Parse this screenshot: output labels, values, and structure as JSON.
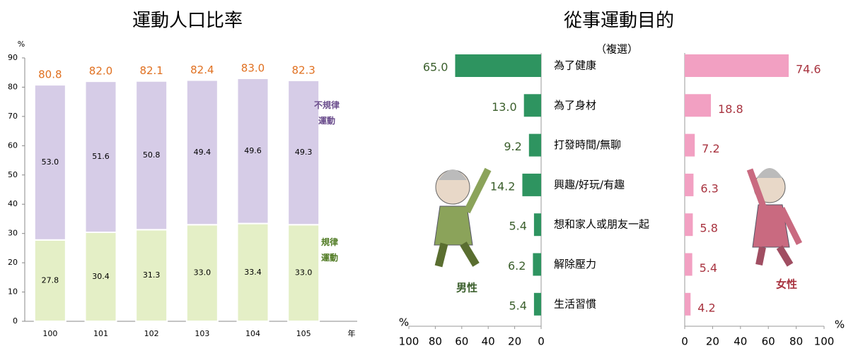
{
  "chart_data": [
    {
      "type": "stacked_bar",
      "title": "運動人口比率",
      "y_label": "%",
      "x_label": "年",
      "categories": [
        "100",
        "101",
        "102",
        "103",
        "104",
        "105"
      ],
      "series": [
        {
          "name": "規律運動",
          "color": "#e4efc6",
          "values": [
            27.8,
            30.4,
            31.3,
            33.0,
            33.4,
            33.0
          ],
          "value_labels": [
            "27.8",
            "30.4",
            "31.3",
            "33.0",
            "33.4",
            "33.0"
          ]
        },
        {
          "name": "不規律運動",
          "color": "#d6cce7",
          "values": [
            53.0,
            51.6,
            50.8,
            49.4,
            49.6,
            49.3
          ],
          "value_labels": [
            "53.0",
            "51.6",
            "50.8",
            "49.4",
            "49.6",
            "49.3"
          ]
        }
      ],
      "totals": [
        80.8,
        82.0,
        82.1,
        82.4,
        83.0,
        82.3
      ],
      "total_labels": [
        "80.8",
        "82.0",
        "82.1",
        "82.4",
        "83.0",
        "82.3"
      ],
      "ylim": [
        0,
        90
      ],
      "yticks": [
        0,
        10,
        20,
        30,
        40,
        50,
        60,
        70,
        80,
        90
      ]
    },
    {
      "type": "butterfly",
      "title": "從事運動目的",
      "subtitle": "（複選）",
      "x_label": "%",
      "categories": [
        "為了健康",
        "為了身材",
        "打發時間/無聊",
        "興趣/好玩/有趣",
        "想和家人或朋友一起",
        "解除壓力",
        "生活習慣"
      ],
      "series": [
        {
          "name": "男性",
          "color": "#2e9460",
          "label_color": "#3b5f2c",
          "values": [
            65.0,
            13.0,
            9.2,
            14.2,
            5.4,
            6.2,
            5.4
          ],
          "value_labels": [
            "65.0",
            "13.0",
            "9.2",
            "14.2",
            "5.4",
            "6.2",
            "5.4"
          ]
        },
        {
          "name": "女性",
          "color": "#f2a0c2",
          "label_color": "#a8333f",
          "values": [
            74.6,
            18.8,
            7.2,
            6.3,
            5.8,
            5.4,
            4.2
          ],
          "value_labels": [
            "74.6",
            "18.8",
            "7.2",
            "6.3",
            "5.8",
            "5.4",
            "4.2"
          ]
        }
      ],
      "xlim": [
        0,
        100
      ],
      "xticks": [
        0,
        20,
        40,
        60,
        80,
        100
      ]
    }
  ]
}
